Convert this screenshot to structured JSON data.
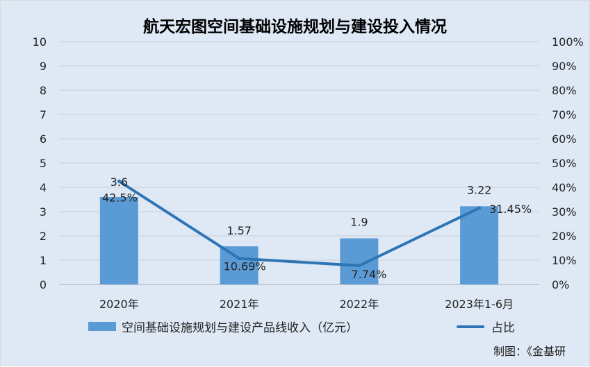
{
  "title": "航天宏图空间基础设施规划与建设投入情况",
  "source": "制图：《金基研",
  "chart_data": {
    "type": "bar",
    "categories": [
      "2020年",
      "2021年",
      "2022年",
      "2023年1-6月"
    ],
    "series": [
      {
        "name": "空间基础设施规划与建设产品线收入（亿元）",
        "type": "bar",
        "axis": "left",
        "values": [
          3.6,
          1.57,
          1.9,
          3.22
        ],
        "labels": [
          "3.6",
          "1.57",
          "1.9",
          "3.22"
        ],
        "color": "#5b9bd5"
      },
      {
        "name": "占比",
        "type": "line",
        "axis": "right",
        "values": [
          42.5,
          10.69,
          7.74,
          31.45
        ],
        "labels": [
          "42.5%",
          "10.69%",
          "7.74%",
          "31.45%"
        ],
        "color": "#2e75b6"
      }
    ],
    "y_left": {
      "ylim": [
        0,
        10
      ],
      "ticks": [
        "0",
        "1",
        "2",
        "3",
        "4",
        "5",
        "6",
        "7",
        "8",
        "9",
        "10"
      ]
    },
    "y_right": {
      "ylim": [
        0,
        100
      ],
      "ticks": [
        "0%",
        "10%",
        "20%",
        "30%",
        "40%",
        "50%",
        "60%",
        "70%",
        "80%",
        "90%",
        "100%"
      ]
    },
    "grid": true,
    "legend": "bottom"
  }
}
